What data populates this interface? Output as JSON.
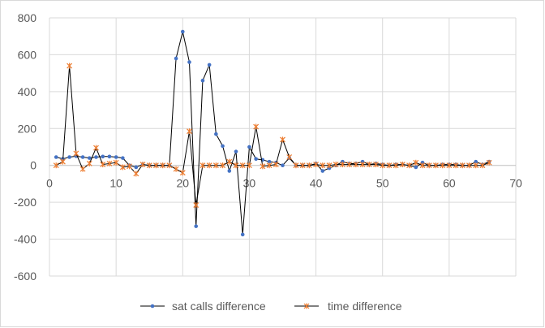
{
  "chart_data": {
    "type": "line",
    "title": "",
    "xlabel": "",
    "ylabel": "",
    "xlim": [
      0,
      70
    ],
    "ylim": [
      -600,
      800
    ],
    "x_ticks": [
      0,
      10,
      20,
      30,
      40,
      50,
      60,
      70
    ],
    "y_ticks": [
      -600,
      -400,
      -200,
      0,
      200,
      400,
      600,
      800
    ],
    "grid": true,
    "legend_position": "bottom",
    "series": [
      {
        "name": "sat calls difference",
        "color": "#4472c4",
        "marker": "dot",
        "x": [
          1,
          2,
          3,
          4,
          5,
          6,
          7,
          8,
          9,
          10,
          11,
          12,
          13,
          14,
          15,
          16,
          17,
          18,
          19,
          20,
          21,
          22,
          23,
          24,
          25,
          26,
          27,
          28,
          29,
          30,
          31,
          32,
          33,
          34,
          35,
          36,
          37,
          38,
          39,
          40,
          41,
          42,
          43,
          44,
          45,
          46,
          47,
          48,
          49,
          50,
          51,
          52,
          53,
          54,
          55,
          56,
          57,
          58,
          59,
          60,
          61,
          62,
          63,
          64,
          65,
          66
        ],
        "y": [
          45,
          35,
          45,
          50,
          45,
          40,
          45,
          48,
          48,
          45,
          40,
          0,
          -10,
          5,
          0,
          0,
          0,
          0,
          580,
          725,
          560,
          -330,
          460,
          545,
          170,
          105,
          -30,
          75,
          -375,
          100,
          35,
          30,
          20,
          15,
          0,
          40,
          0,
          0,
          0,
          10,
          -30,
          -15,
          0,
          20,
          10,
          10,
          20,
          5,
          10,
          5,
          0,
          5,
          5,
          0,
          -10,
          15,
          0,
          0,
          5,
          5,
          5,
          0,
          0,
          20,
          5,
          20
        ]
      },
      {
        "name": "time difference",
        "color": "#ed7d31",
        "marker": "star",
        "x": [
          1,
          2,
          3,
          4,
          5,
          6,
          7,
          8,
          9,
          10,
          11,
          12,
          13,
          14,
          15,
          16,
          17,
          18,
          19,
          20,
          21,
          22,
          23,
          24,
          25,
          26,
          27,
          28,
          29,
          30,
          31,
          32,
          33,
          34,
          35,
          36,
          37,
          38,
          39,
          40,
          41,
          42,
          43,
          44,
          45,
          46,
          47,
          48,
          49,
          50,
          51,
          52,
          53,
          54,
          55,
          56,
          57,
          58,
          59,
          60,
          61,
          62,
          63,
          64,
          65,
          66
        ],
        "y": [
          0,
          20,
          540,
          65,
          -20,
          10,
          95,
          5,
          10,
          15,
          -10,
          -5,
          -45,
          5,
          0,
          0,
          0,
          0,
          -20,
          -40,
          185,
          -215,
          0,
          0,
          0,
          0,
          20,
          0,
          0,
          0,
          210,
          -5,
          0,
          5,
          140,
          45,
          0,
          0,
          0,
          5,
          0,
          0,
          5,
          5,
          5,
          5,
          5,
          5,
          5,
          0,
          0,
          0,
          5,
          0,
          15,
          0,
          0,
          0,
          0,
          0,
          0,
          0,
          0,
          0,
          0,
          15
        ]
      }
    ]
  }
}
